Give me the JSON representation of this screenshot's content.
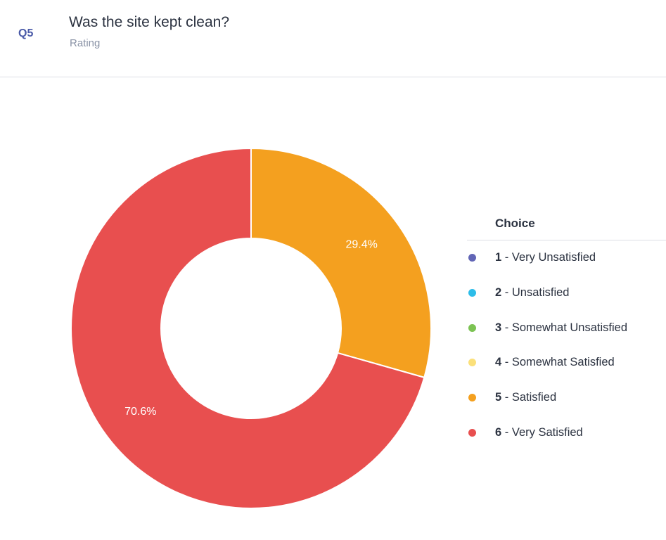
{
  "header": {
    "question_number": "Q5",
    "question_title": "Was the site kept clean?",
    "question_type": "Rating"
  },
  "legend": {
    "title": "Choice"
  },
  "chart_data": {
    "type": "pie",
    "donut": true,
    "title": "",
    "legend_position": "right",
    "slices": [
      {
        "num": "1",
        "label": " - Very Unsatisfied",
        "value": 0,
        "color": "#6266b6"
      },
      {
        "num": "2",
        "label": " - Unsatisfied",
        "value": 0,
        "color": "#2dbde9"
      },
      {
        "num": "3",
        "label": " - Somewhat Unsatisfied",
        "value": 0,
        "color": "#7cc353"
      },
      {
        "num": "4",
        "label": " - Somewhat Satisfied",
        "value": 0,
        "color": "#fbe07a"
      },
      {
        "num": "5",
        "label": " - Satisfied",
        "value": 29.4,
        "display": "29.4%",
        "color": "#f4a01f"
      },
      {
        "num": "6",
        "label": " - Very Satisfied",
        "value": 70.6,
        "display": "70.6%",
        "color": "#e84f4f"
      }
    ]
  }
}
